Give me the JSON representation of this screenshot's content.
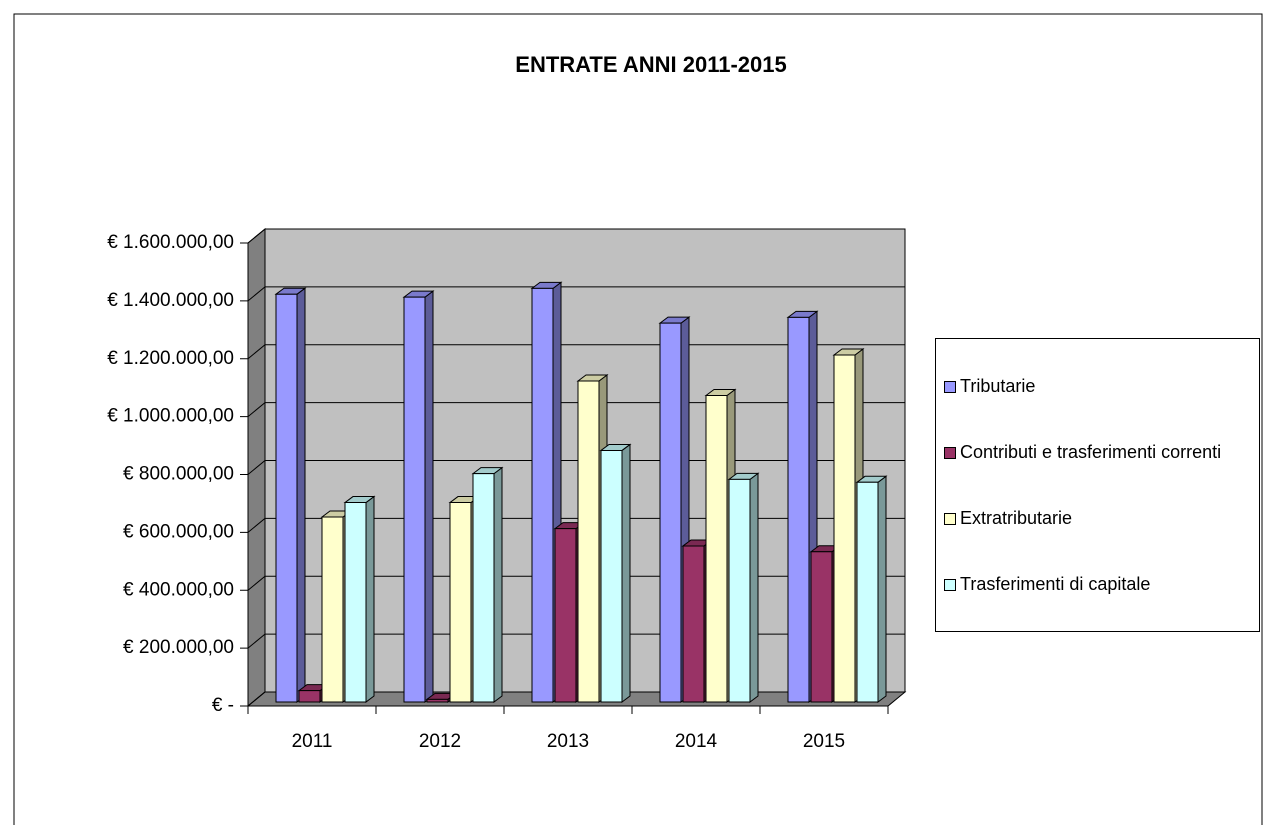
{
  "chart_data": {
    "type": "bar3d",
    "title": "ENTRATE ANNI 2011-2015",
    "categories": [
      "2011",
      "2012",
      "2013",
      "2014",
      "2015"
    ],
    "series": [
      {
        "name": "Tributarie",
        "color": "#9999ff",
        "values": [
          1430000,
          1420000,
          1450000,
          1330000,
          1350000
        ]
      },
      {
        "name": "Contributi e trasferimenti correnti",
        "color": "#993366",
        "values": [
          60000,
          30000,
          620000,
          560000,
          540000
        ]
      },
      {
        "name": "Extratributarie",
        "color": "#ffffcc",
        "values": [
          660000,
          710000,
          1130000,
          1080000,
          1220000
        ]
      },
      {
        "name": "Trasferimenti di capitale",
        "color": "#ccffff",
        "values": [
          710000,
          810000,
          890000,
          790000,
          780000
        ]
      }
    ],
    "ylim": [
      0,
      1600000
    ],
    "yticks": [
      {
        "value": 0,
        "label": "€ -"
      },
      {
        "value": 200000,
        "label": "€ 200.000,00"
      },
      {
        "value": 400000,
        "label": "€ 400.000,00"
      },
      {
        "value": 600000,
        "label": "€ 600.000,00"
      },
      {
        "value": 800000,
        "label": "€ 800.000,00"
      },
      {
        "value": 1000000,
        "label": "€ 1.000.000,00"
      },
      {
        "value": 1200000,
        "label": "€ 1.200.000,00"
      },
      {
        "value": 1400000,
        "label": "€ 1.400.000,00"
      },
      {
        "value": 1600000,
        "label": "€ 1.600.000,00"
      }
    ],
    "grid": true,
    "legend": "right"
  }
}
